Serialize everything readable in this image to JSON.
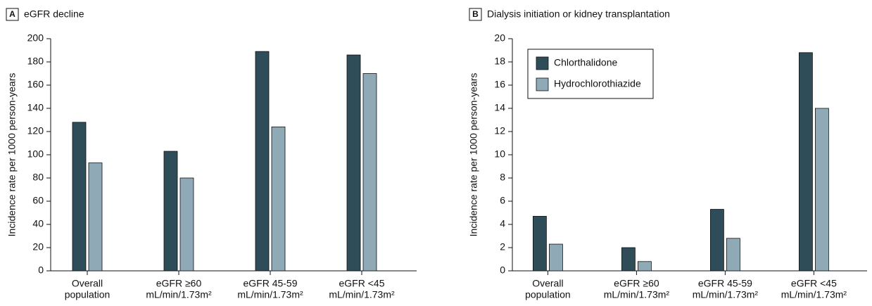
{
  "chart_data": [
    {
      "type": "bar",
      "panel": "A",
      "title": "eGFR decline",
      "y_label": "Incidence rate per 1000 person-years",
      "categories": [
        [
          "Overall",
          "population"
        ],
        [
          "eGFR ≥60",
          "mL/min/1.73m²"
        ],
        [
          "eGFR 45-59",
          "mL/min/1.73m²"
        ],
        [
          "eGFR <45",
          "mL/min/1.73m²"
        ]
      ],
      "series": [
        {
          "color": "#2e4d58",
          "values": [
            128,
            103,
            189,
            186
          ]
        },
        {
          "color": "#8faab6",
          "values": [
            93,
            80,
            124,
            170
          ]
        }
      ],
      "ylim": [
        0,
        200
      ],
      "yticks": [
        0,
        20,
        40,
        60,
        80,
        100,
        120,
        140,
        160,
        180,
        200
      ]
    },
    {
      "type": "bar",
      "panel": "B",
      "title": "Dialysis initiation or kidney transplantation",
      "y_label": "Incidence rate per 1000 person-years",
      "categories": [
        [
          "Overall",
          "population"
        ],
        [
          "eGFR ≥60",
          "mL/min/1.73m²"
        ],
        [
          "eGFR 45-59",
          "mL/min/1.73m²"
        ],
        [
          "eGFR <45",
          "mL/min/1.73m²"
        ]
      ],
      "series": [
        {
          "name": "Chlorthalidone",
          "color": "#2e4d58",
          "values": [
            4.7,
            2.0,
            5.3,
            18.8
          ]
        },
        {
          "name": "Hydrochlorothiazide",
          "color": "#8faab6",
          "values": [
            2.3,
            0.8,
            2.8,
            14.0
          ]
        }
      ],
      "ylim": [
        0,
        20
      ],
      "yticks": [
        0,
        2,
        4,
        6,
        8,
        10,
        12,
        14,
        16,
        18,
        20
      ],
      "legend": "upper left"
    }
  ]
}
